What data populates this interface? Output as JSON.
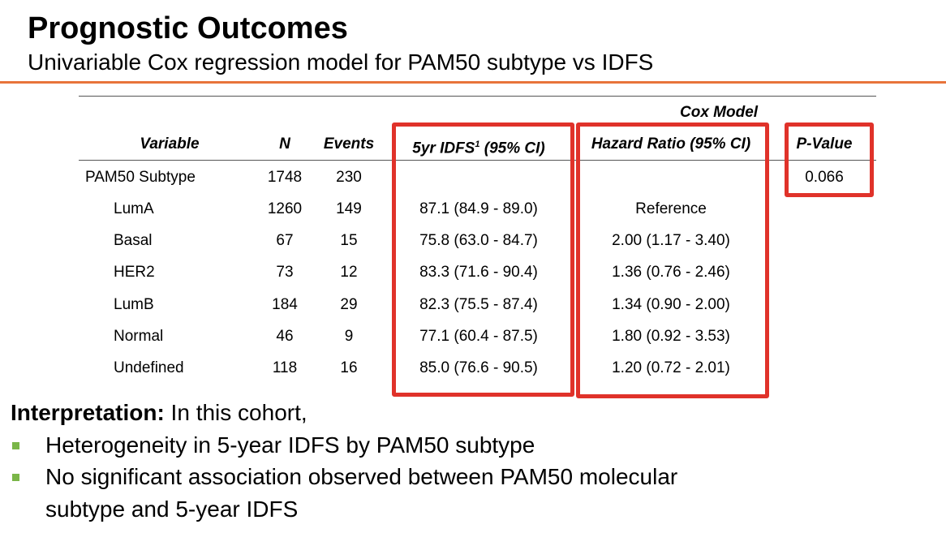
{
  "slide": {
    "title": "Prognostic Outcomes",
    "subtitle": "Univariable Cox regression model for PAM50 subtype vs IDFS"
  },
  "table": {
    "group_header": "Cox Model",
    "headers": {
      "variable": "Variable",
      "n": "N",
      "events": "Events",
      "idfs_main": "5yr IDFS",
      "idfs_sup": "1",
      "idfs_tail": " (95% CI)",
      "hr": "Hazard Ratio (95% CI)",
      "pvalue": "P-Value"
    },
    "rows": [
      {
        "variable": "PAM50 Subtype",
        "n": "1748",
        "events": "230",
        "idfs": "",
        "hr": "",
        "pvalue": "0.066"
      },
      {
        "variable": "LumA",
        "n": "1260",
        "events": "149",
        "idfs": "87.1 (84.9 - 89.0)",
        "hr": "Reference",
        "pvalue": ""
      },
      {
        "variable": "Basal",
        "n": "67",
        "events": "15",
        "idfs": "75.8 (63.0 - 84.7)",
        "hr": "2.00 (1.17 - 3.40)",
        "pvalue": ""
      },
      {
        "variable": "HER2",
        "n": "73",
        "events": "12",
        "idfs": "83.3 (71.6 - 90.4)",
        "hr": "1.36 (0.76 - 2.46)",
        "pvalue": ""
      },
      {
        "variable": "LumB",
        "n": "184",
        "events": "29",
        "idfs": "82.3 (75.5 - 87.4)",
        "hr": "1.34 (0.90 - 2.00)",
        "pvalue": ""
      },
      {
        "variable": "Normal",
        "n": "46",
        "events": "9",
        "idfs": "77.1 (60.4 - 87.5)",
        "hr": "1.80 (0.92 - 3.53)",
        "pvalue": ""
      },
      {
        "variable": "Undefined",
        "n": "118",
        "events": "16",
        "idfs": "85.0 (76.6 - 90.5)",
        "hr": "1.20 (0.72 - 2.01)",
        "pvalue": ""
      }
    ]
  },
  "interpretation": {
    "lead": "Interpretation:",
    "text": " In this cohort,",
    "bullets": [
      "Heterogeneity in 5-year IDFS by PAM50 subtype",
      "No significant association observed between PAM50 molecular",
      "subtype and 5-year IDFS"
    ]
  },
  "colors": {
    "accent_rule": "#e8743b",
    "highlight_box": "#e0322a",
    "bullet": "#7ab648"
  }
}
